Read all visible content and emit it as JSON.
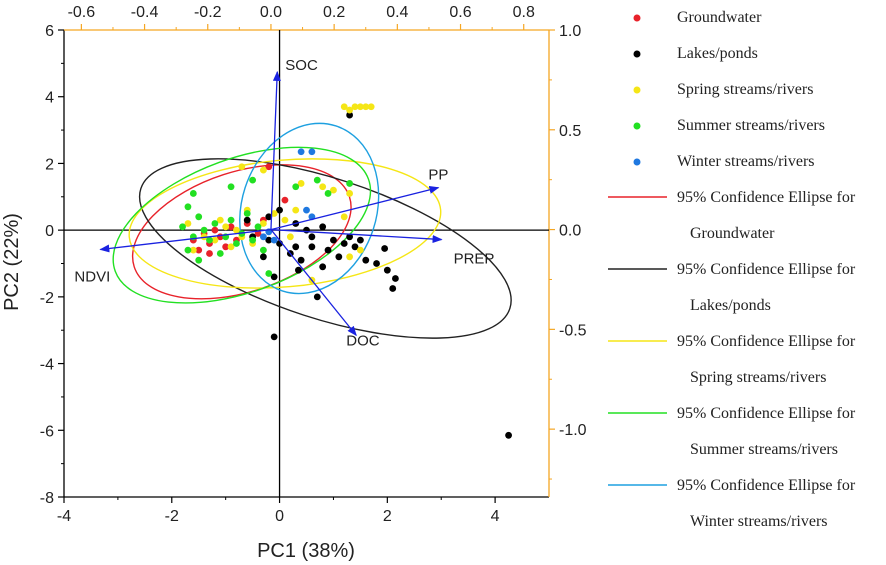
{
  "chart_data": {
    "type": "scatter",
    "subtype": "pca-biplot",
    "xlabel": "PC1 (38%)",
    "ylabel": "PC2 (22%)",
    "xlim": [
      -4,
      5
    ],
    "ylim": [
      -8,
      6
    ],
    "xticks": [
      -4,
      -2,
      0,
      2,
      4
    ],
    "yticks": [
      -8,
      -6,
      -4,
      -2,
      0,
      2,
      4,
      6
    ],
    "loading_axes": {
      "xlim": [
        -0.655,
        0.88
      ],
      "ylim": [
        -1.34,
        1.0
      ],
      "xticks": [
        -0.6,
        -0.4,
        -0.2,
        0.0,
        0.2,
        0.4,
        0.6,
        0.8
      ],
      "xtick_labels": [
        "-0.6",
        "-0.4",
        "-0.2",
        "0.0",
        "0.2",
        "0.4",
        "0.6",
        "0.8"
      ],
      "yticks": [
        1.0,
        0.5,
        0.0,
        -0.5,
        -1.0
      ],
      "ytick_labels": [
        "1.0",
        "0.5",
        "0.0",
        "-0.5",
        "-1.0"
      ],
      "color": "#f5a623"
    },
    "vectors": [
      {
        "name": "SOC",
        "x": 0.02,
        "y": 0.79
      },
      {
        "name": "PP",
        "x": 0.53,
        "y": 0.21
      },
      {
        "name": "PREP",
        "x": 0.54,
        "y": -0.05
      },
      {
        "name": "DOC",
        "x": 0.27,
        "y": -0.53
      },
      {
        "name": "NDVI",
        "x": -0.54,
        "y": -0.1
      }
    ],
    "vector_color": "#1a22e0",
    "series": [
      {
        "name": "Groundwater",
        "color": "#e8222a",
        "points": [
          [
            -1.6,
            -0.3
          ],
          [
            -1.4,
            -0.1
          ],
          [
            -1.3,
            -0.4
          ],
          [
            -1.2,
            0.0
          ],
          [
            -1.1,
            -0.2
          ],
          [
            -1.0,
            -0.5
          ],
          [
            -0.9,
            0.1
          ],
          [
            -0.8,
            -0.3
          ],
          [
            -1.5,
            -0.6
          ],
          [
            -0.6,
            0.2
          ],
          [
            -0.4,
            -0.1
          ],
          [
            -0.2,
            1.9
          ],
          [
            0.1,
            0.9
          ],
          [
            -0.3,
            0.3
          ],
          [
            -1.3,
            -0.7
          ]
        ]
      },
      {
        "name": "Lakes/ponds",
        "color": "#000000",
        "points": [
          [
            1.3,
            3.45
          ],
          [
            4.25,
            -6.15
          ],
          [
            -0.6,
            0.3
          ],
          [
            -0.2,
            0.4
          ],
          [
            0.0,
            0.6
          ],
          [
            0.3,
            0.2
          ],
          [
            0.5,
            0.0
          ],
          [
            0.6,
            -0.2
          ],
          [
            0.8,
            0.1
          ],
          [
            1.0,
            -0.3
          ],
          [
            1.1,
            -0.8
          ],
          [
            1.2,
            -0.4
          ],
          [
            1.4,
            -0.5
          ],
          [
            1.6,
            -0.9
          ],
          [
            1.8,
            -1.0
          ],
          [
            2.0,
            -1.2
          ],
          [
            2.1,
            -1.75
          ],
          [
            2.15,
            -1.45
          ],
          [
            1.95,
            -0.55
          ],
          [
            0.7,
            -2.0
          ],
          [
            -0.1,
            -3.2
          ],
          [
            0.2,
            -0.7
          ],
          [
            0.4,
            -0.9
          ],
          [
            0.9,
            -0.6
          ],
          [
            1.3,
            -0.2
          ],
          [
            0.0,
            -0.4
          ],
          [
            -0.2,
            -0.3
          ],
          [
            0.3,
            -0.5
          ],
          [
            0.6,
            -0.5
          ],
          [
            1.5,
            -0.3
          ],
          [
            -0.3,
            -0.8
          ],
          [
            -0.1,
            -1.4
          ],
          [
            0.35,
            -1.2
          ],
          [
            -0.5,
            -0.2
          ],
          [
            0.8,
            -1.1
          ]
        ]
      },
      {
        "name": "Spring streams/rivers",
        "color": "#f5e616",
        "points": [
          [
            1.2,
            3.7
          ],
          [
            1.4,
            3.7
          ],
          [
            1.5,
            3.7
          ],
          [
            1.6,
            3.7
          ],
          [
            1.7,
            3.7
          ],
          [
            1.3,
            3.6
          ],
          [
            -0.7,
            1.9
          ],
          [
            -0.3,
            1.8
          ],
          [
            0.4,
            1.4
          ],
          [
            0.8,
            1.3
          ],
          [
            1.0,
            1.2
          ],
          [
            1.3,
            1.1
          ],
          [
            0.3,
            0.6
          ],
          [
            1.2,
            0.4
          ],
          [
            -1.6,
            -0.6
          ],
          [
            -1.4,
            -0.2
          ],
          [
            -1.2,
            -0.3
          ],
          [
            -1.1,
            0.3
          ],
          [
            -0.9,
            -0.5
          ],
          [
            -0.8,
            0.0
          ],
          [
            -0.7,
            -0.2
          ],
          [
            -0.5,
            -0.4
          ],
          [
            -0.3,
            0.2
          ],
          [
            -0.1,
            0.5
          ],
          [
            0.1,
            0.3
          ],
          [
            1.3,
            -0.8
          ],
          [
            1.5,
            -0.6
          ],
          [
            0.6,
            -1.5
          ],
          [
            -1.7,
            0.2
          ],
          [
            -1.0,
            0.1
          ],
          [
            -0.6,
            0.6
          ],
          [
            0.2,
            -0.2
          ]
        ]
      },
      {
        "name": "Summer streams/rivers",
        "color": "#22e022",
        "points": [
          [
            -1.7,
            -0.6
          ],
          [
            -1.6,
            -0.2
          ],
          [
            -1.5,
            0.4
          ],
          [
            -1.4,
            0.0
          ],
          [
            -1.3,
            -0.3
          ],
          [
            -1.2,
            0.2
          ],
          [
            -1.1,
            -0.7
          ],
          [
            -1.0,
            -0.2
          ],
          [
            -0.9,
            0.3
          ],
          [
            -0.8,
            -0.4
          ],
          [
            -0.7,
            -0.1
          ],
          [
            -0.6,
            0.5
          ],
          [
            -0.5,
            -0.3
          ],
          [
            -0.4,
            0.1
          ],
          [
            -0.3,
            -0.6
          ],
          [
            -1.7,
            0.7
          ],
          [
            -1.5,
            -0.9
          ],
          [
            -0.9,
            1.3
          ],
          [
            -0.5,
            1.5
          ],
          [
            0.3,
            1.3
          ],
          [
            0.7,
            1.5
          ],
          [
            0.9,
            1.1
          ],
          [
            1.3,
            1.4
          ],
          [
            -0.2,
            -1.3
          ],
          [
            -1.8,
            0.1
          ],
          [
            -1.6,
            1.1
          ]
        ]
      },
      {
        "name": "Winter streams/rivers",
        "color": "#1f78e0",
        "points": [
          [
            0.4,
            2.35
          ],
          [
            0.6,
            2.35
          ],
          [
            0.5,
            0.6
          ],
          [
            0.6,
            0.4
          ],
          [
            -0.3,
            -0.2
          ],
          [
            -0.1,
            -0.3
          ],
          [
            -0.2,
            -0.05
          ]
        ]
      }
    ],
    "ellipses": [
      {
        "name": "95% Confidence Ellipse for",
        "group": "Groundwater",
        "color": "#e8222a",
        "cx": -0.7,
        "cy": -0.05,
        "rx": 2.1,
        "ry": 1.8,
        "angle": 18
      },
      {
        "name": "95% Confidence Ellipse for",
        "group": "Lakes/ponds",
        "color": "#222222",
        "cx": 0.85,
        "cy": -0.55,
        "rx": 3.6,
        "ry": 2.1,
        "angle": -18
      },
      {
        "name": "95% Confidence Ellipse for",
        "group": "Spring streams/rivers",
        "color": "#f5e616",
        "cx": 0.1,
        "cy": 0.2,
        "rx": 2.9,
        "ry": 1.9,
        "angle": 5
      },
      {
        "name": "95% Confidence Ellipse for",
        "group": "Summer streams/rivers",
        "color": "#22e022",
        "cx": -0.7,
        "cy": 0.15,
        "rx": 2.5,
        "ry": 2.0,
        "angle": 20
      },
      {
        "name": "95% Confidence Ellipse for",
        "group": "Winter streams/rivers",
        "color": "#1ea0e0",
        "cx": 0.55,
        "cy": 0.65,
        "rx": 1.25,
        "ry": 2.6,
        "angle": -18
      }
    ],
    "legend": {
      "position": "right",
      "point_entries": [
        "Groundwater",
        "Lakes/ponds",
        "Spring streams/rivers",
        "Summer streams/rivers",
        "Winter streams/rivers"
      ],
      "ellipse_entries": [
        {
          "line1": "95% Confidence Ellipse for",
          "line2": "Groundwater",
          "color": "#e8222a"
        },
        {
          "line1": "95% Confidence Ellipse for",
          "line2": "Lakes/ponds",
          "color": "#222222"
        },
        {
          "line1": "95% Confidence Ellipse for",
          "line2": "Spring streams/rivers",
          "color": "#f5e616"
        },
        {
          "line1": "95% Confidence Ellipse for",
          "line2": "Summer streams/rivers",
          "color": "#22e022"
        },
        {
          "line1": "95% Confidence Ellipse for",
          "line2": "Winter streams/rivers",
          "color": "#1ea0e0"
        }
      ]
    }
  }
}
